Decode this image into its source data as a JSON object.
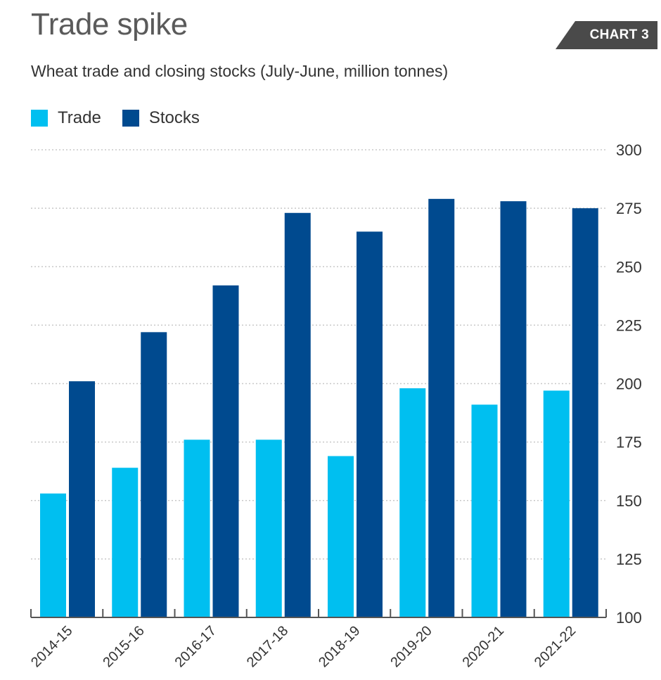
{
  "header": {
    "title": "Trade spike",
    "badge": "CHART 3",
    "subtitle": "Wheat trade and closing stocks (July-June, million tonnes)"
  },
  "colors": {
    "trade": "#00bff0",
    "stocks": "#004a8f",
    "badge": "#4a4a4a",
    "grid": "#c8c8c8",
    "axis": "#555555"
  },
  "chart_data": {
    "type": "bar",
    "title": "Trade spike",
    "subtitle": "Wheat trade and closing stocks (July-June, million tonnes)",
    "categories": [
      "2014-15",
      "2015-16",
      "2016-17",
      "2017-18",
      "2018-19",
      "2019-20",
      "2020-21",
      "2021-22"
    ],
    "series": [
      {
        "name": "Trade",
        "values": [
          153,
          164,
          176,
          176,
          169,
          198,
          191,
          197
        ]
      },
      {
        "name": "Stocks",
        "values": [
          201,
          222,
          242,
          273,
          265,
          279,
          278,
          275
        ]
      }
    ],
    "ylim": [
      100,
      300
    ],
    "yticks": [
      "100",
      "125",
      "150",
      "175",
      "200",
      "225",
      "250",
      "275",
      "300"
    ],
    "y_axis_side": "right",
    "legend_position": "top-left",
    "grid": true
  }
}
